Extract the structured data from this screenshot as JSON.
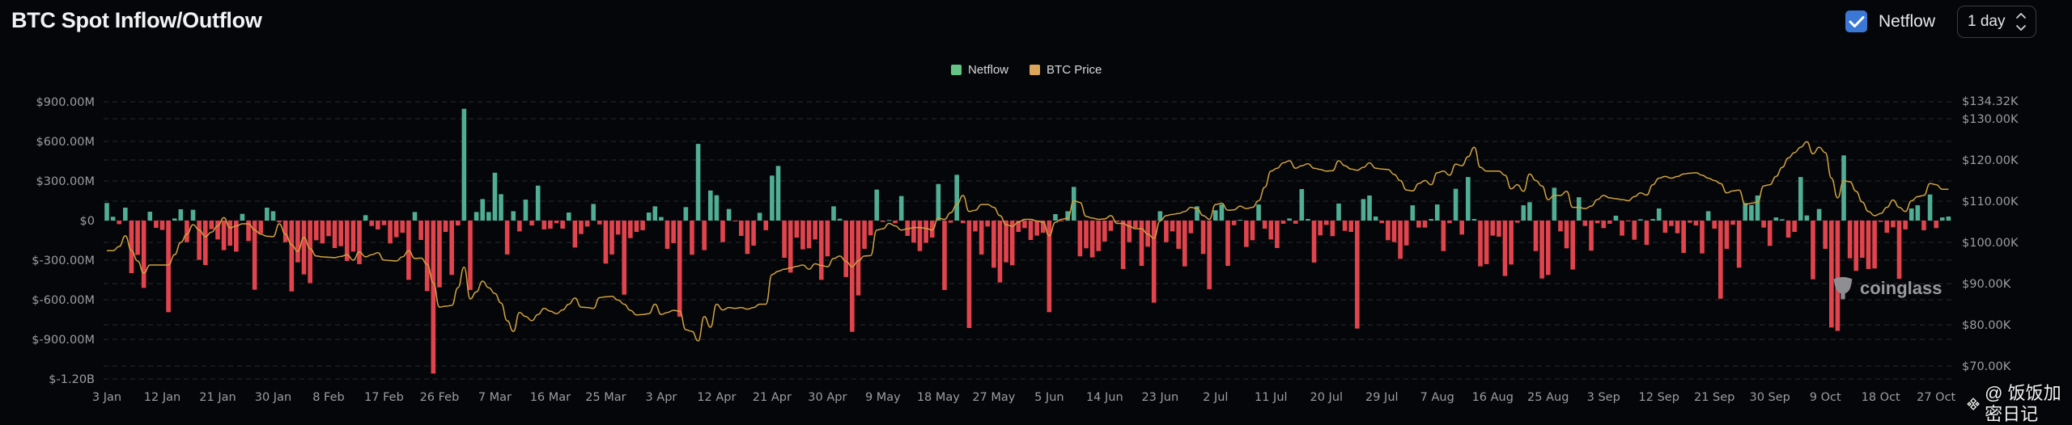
{
  "header": {
    "title": "BTC Spot Inflow/Outflow",
    "netflow_toggle": {
      "label": "Netflow",
      "checked": true
    },
    "interval_select": {
      "value": "1 day"
    }
  },
  "colors": {
    "positive": "#4fae93",
    "negative": "#e2444e",
    "price_line": "#cfa23e",
    "legend_netflow": "#63c485",
    "legend_price": "#dca65a",
    "checkbox": "#3b78d6"
  },
  "watermarks": {
    "coinglass": "coinglass",
    "binance_handle": "@ 饭饭加密日记"
  },
  "chart_data": {
    "type": "bar+line",
    "title": "",
    "legend": {
      "position": "top-center",
      "entries": [
        "Netflow",
        "BTC Price"
      ]
    },
    "grid": true,
    "x_tick_labels": [
      "3 Jan",
      "12 Jan",
      "21 Jan",
      "30 Jan",
      "8 Feb",
      "17 Feb",
      "26 Feb",
      "7 Mar",
      "16 Mar",
      "25 Mar",
      "3 Apr",
      "12 Apr",
      "21 Apr",
      "30 Apr",
      "9 May",
      "18 May",
      "27 May",
      "5 Jun",
      "14 Jun",
      "23 Jun",
      "2 Jul",
      "11 Jul",
      "20 Jul",
      "29 Jul",
      "7 Aug",
      "16 Aug",
      "25 Aug",
      "3 Sep",
      "12 Sep",
      "21 Sep",
      "30 Sep",
      "9 Oct",
      "18 Oct",
      "27 Oct"
    ],
    "x_start": "3 Jan",
    "x_interval": "1 day",
    "left_axis": {
      "unit": "USD (M)",
      "ylim": [
        -1200,
        900
      ],
      "tick_values": [
        900,
        600,
        300,
        0,
        -300,
        -600,
        -900,
        -1200
      ],
      "tick_labels": [
        "$900.00M",
        "$600.00M",
        "$300.00M",
        "$0",
        "$-300.00M",
        "$-600.00M",
        "$-900.00M",
        "$-1.20B"
      ]
    },
    "right_axis": {
      "unit": "USD (K)",
      "ylim_top": 134.32,
      "tick_values": [
        134.32,
        130,
        120,
        110,
        100,
        90,
        80,
        70
      ],
      "tick_labels": [
        "$134.32K",
        "$130.00K",
        "$120.00K",
        "$110.00K",
        "$100.00K",
        "$90.00K",
        "$80.00K",
        "$70.00K"
      ]
    },
    "series": [
      {
        "name": "Netflow",
        "type": "bar",
        "axis": "left",
        "values": [
          133,
          29,
          -27,
          98,
          -398,
          -260,
          -510,
          67,
          -55,
          -71,
          -694,
          16,
          86,
          -163,
          82,
          -298,
          -337,
          -65,
          -143,
          -224,
          -190,
          -235,
          51,
          -155,
          -524,
          -96,
          98,
          71,
          -14,
          -163,
          -537,
          -316,
          -408,
          -473,
          -149,
          -173,
          -118,
          -208,
          -194,
          -306,
          -235,
          -330,
          41,
          -41,
          -67,
          -35,
          -173,
          -126,
          -92,
          -449,
          65,
          -147,
          -534,
          -1159,
          -506,
          -86,
          -412,
          -37,
          847,
          -526,
          65,
          163,
          65,
          363,
          200,
          -257,
          71,
          -82,
          159,
          -37,
          265,
          -67,
          -61,
          -20,
          -61,
          61,
          -204,
          -102,
          -45,
          126,
          -29,
          -326,
          -257,
          -106,
          -561,
          -133,
          -86,
          -73,
          61,
          108,
          27,
          -214,
          -171,
          -728,
          102,
          -259,
          581,
          -224,
          228,
          192,
          -163,
          88,
          -5,
          -116,
          -253,
          -190,
          59,
          -73,
          341,
          414,
          -282,
          -394,
          -129,
          -218,
          -210,
          -143,
          -449,
          -271,
          108,
          14,
          -428,
          -843,
          -567,
          -214,
          -112,
          235,
          -10,
          4,
          -20,
          186,
          -116,
          -167,
          -231,
          -169,
          -129,
          277,
          -526,
          -16,
          347,
          -20,
          -814,
          -82,
          -257,
          -45,
          -357,
          -469,
          -316,
          -339,
          -86,
          -57,
          -147,
          -114,
          -92,
          -694,
          49,
          -6,
          71,
          255,
          -271,
          -210,
          -279,
          -231,
          -159,
          -78,
          -10,
          -367,
          -163,
          -55,
          -343,
          -198,
          -622,
          71,
          -163,
          -82,
          -214,
          -347,
          -96,
          108,
          -253,
          -520,
          78,
          122,
          -343,
          -35,
          6,
          -200,
          -149,
          122,
          -61,
          -143,
          -208,
          -24,
          16,
          -24,
          239,
          12,
          -318,
          -112,
          -33,
          -118,
          129,
          -78,
          -86,
          -818,
          163,
          190,
          31,
          -20,
          -149,
          -163,
          -290,
          -188,
          116,
          -53,
          -53,
          12,
          122,
          -231,
          -20,
          241,
          -106,
          330,
          12,
          -347,
          -330,
          -114,
          -122,
          -420,
          -333,
          -16,
          116,
          139,
          -231,
          -439,
          -412,
          249,
          -82,
          -210,
          -371,
          177,
          -41,
          -228,
          -20,
          -57,
          -24,
          37,
          -114,
          -4,
          -145,
          10,
          -184,
          12,
          92,
          -92,
          -41,
          -96,
          -245,
          -16,
          -37,
          -249,
          71,
          -61,
          -592,
          -214,
          -31,
          -357,
          133,
          118,
          190,
          -53,
          -192,
          24,
          10,
          -129,
          -86,
          330,
          39,
          -445,
          88,
          -214,
          -810,
          -836,
          494,
          -286,
          -381,
          -282,
          -367,
          -363,
          -10,
          -92,
          -51,
          -441,
          -67,
          92,
          116,
          -73,
          198,
          -57,
          24,
          31
        ]
      },
      {
        "name": "BTC Price",
        "type": "line",
        "axis": "right",
        "values": [
          98,
          98,
          99,
          101.6,
          98,
          95.5,
          92.5,
          94.5,
          94.5,
          94.5,
          94.5,
          97,
          100,
          102,
          104.3,
          103,
          101.4,
          102.5,
          104,
          106,
          103.5,
          104,
          104.5,
          104.5,
          103,
          102,
          101.5,
          101.4,
          104.5,
          102,
          99.4,
          97.8,
          101.2,
          98.5,
          96.7,
          96.5,
          96.4,
          96.3,
          96.6,
          97,
          95.7,
          97.7,
          96.5,
          97,
          97.5,
          95.7,
          95.6,
          95.5,
          96.5,
          98,
          96.1,
          96.2,
          94.7,
          90.2,
          84.3,
          84.5,
          84.7,
          89,
          94,
          86.3,
          88,
          90.6,
          89,
          87.6,
          85.3,
          81,
          78.4,
          83,
          82,
          81,
          82.5,
          84,
          83.3,
          82.7,
          83.6,
          85,
          86.5,
          84.3,
          84.2,
          84,
          86.6,
          86.8,
          86.9,
          86,
          85,
          83.5,
          82.4,
          82.5,
          82.7,
          85,
          82.5,
          83,
          83.5,
          83.3,
          78.8,
          78.4,
          76.1,
          82,
          79.4,
          85,
          83.6,
          84.2,
          84,
          84.2,
          83.8,
          84.2,
          85,
          85,
          92.2,
          93,
          93.5,
          93.8,
          94.2,
          94.5,
          93.5,
          94.8,
          94.4,
          94.1,
          96.1,
          96.7,
          95.4,
          94.1,
          95.5,
          96.7,
          96.8,
          103,
          103.3,
          104.6,
          104,
          103,
          103.3,
          103.6,
          103.6,
          103.4,
          103,
          105.9,
          105.6,
          107.2,
          109.2,
          111.4,
          107.5,
          107.8,
          109.2,
          109.2,
          108.5,
          106.5,
          104.3,
          103.9,
          104.9,
          105.6,
          105.6,
          105.2,
          104.9,
          101.6,
          104.9,
          105.6,
          105.9,
          110.1,
          109.7,
          106.3,
          105.9,
          105.6,
          105.7,
          106.5,
          104.6,
          104.6,
          103.9,
          103.3,
          103.3,
          102,
          101,
          105.2,
          106.5,
          106.8,
          107,
          107.5,
          108.5,
          108.2,
          106.5,
          105.6,
          109.2,
          109.5,
          107.8,
          107.9,
          108.8,
          108.2,
          108.5,
          110.1,
          113.4,
          117.3,
          118,
          119.3,
          119.8,
          118,
          118.6,
          119.1,
          118,
          117.7,
          117.3,
          117.4,
          119.8,
          118.6,
          117.8,
          117.5,
          118.2,
          119.3,
          118,
          117.8,
          117.7,
          116.5,
          115,
          112.7,
          112.5,
          114.3,
          115,
          114,
          116.9,
          117.3,
          116.3,
          119,
          118.6,
          120.8,
          123.1,
          118.2,
          117.3,
          117.3,
          117.3,
          116.3,
          113,
          114,
          112.4,
          116.6,
          115,
          113.7,
          110.4,
          111.4,
          111.4,
          112.4,
          108.5,
          108.5,
          108.2,
          108.8,
          110.4,
          111.4,
          110.8,
          110.6,
          110.4,
          110.1,
          111.1,
          112,
          111.5,
          114,
          115.6,
          116,
          115.6,
          116,
          116.6,
          116.8,
          116.9,
          116.3,
          115.6,
          115,
          114.3,
          112,
          112.5,
          112.7,
          109.2,
          109.5,
          109.8,
          113.7,
          114,
          116,
          118.2,
          120.5,
          121.8,
          123.1,
          124.4,
          121.5,
          123.1,
          121.8,
          115.6,
          110.8,
          115,
          114.7,
          112.4,
          109.8,
          107.5,
          106.5,
          107,
          108.5,
          110.3,
          108.5,
          107.5,
          110.1,
          111.1,
          111.4,
          114.3,
          114,
          112.9,
          112.9
        ]
      }
    ]
  }
}
